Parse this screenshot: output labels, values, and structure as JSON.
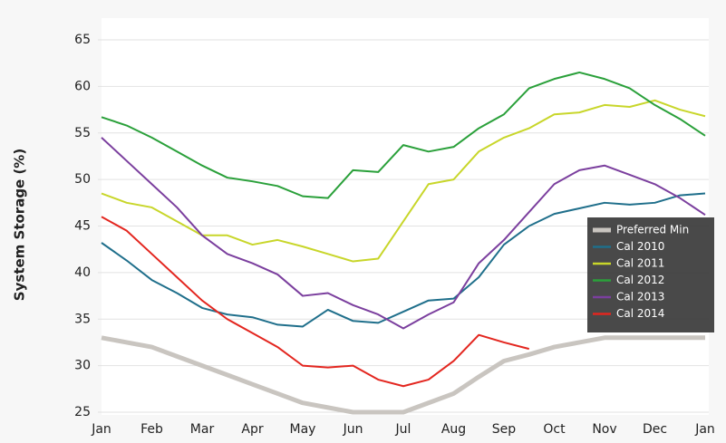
{
  "chart_data": {
    "type": "line",
    "y_label": "System Storage (%)",
    "x": [
      0,
      0.5,
      1,
      1.5,
      2,
      2.5,
      3,
      3.5,
      4,
      4.5,
      5,
      5.5,
      6,
      6.5,
      7,
      7.5,
      8,
      8.5,
      9,
      9.5,
      10,
      10.5,
      11,
      11.5,
      12
    ],
    "xlim": [
      0,
      12
    ],
    "xticks": [
      {
        "value": 0,
        "label": "Jan"
      },
      {
        "value": 1,
        "label": "Feb"
      },
      {
        "value": 2,
        "label": "Mar"
      },
      {
        "value": 3,
        "label": "Apr"
      },
      {
        "value": 4,
        "label": "May"
      },
      {
        "value": 5,
        "label": "Jun"
      },
      {
        "value": 6,
        "label": "Jul"
      },
      {
        "value": 7,
        "label": "Aug"
      },
      {
        "value": 8,
        "label": "Sep"
      },
      {
        "value": 9,
        "label": "Oct"
      },
      {
        "value": 10,
        "label": "Nov"
      },
      {
        "value": 11,
        "label": "Dec"
      },
      {
        "value": 12,
        "label": "Jan"
      }
    ],
    "ylim": [
      25,
      65
    ],
    "yticks": [
      25,
      30,
      35,
      40,
      45,
      50,
      55,
      60,
      65
    ],
    "grid": true,
    "legend": "right",
    "series": [
      {
        "name": "Preferred Min",
        "color": "#c9c5c0",
        "values": [
          33,
          32.5,
          32,
          31,
          30,
          29,
          28,
          27,
          26,
          25.5,
          25,
          25,
          25,
          26,
          27,
          28.8,
          30.5,
          31.2,
          32,
          32.5,
          33,
          33,
          33,
          33,
          33
        ]
      },
      {
        "name": "Cal 2010",
        "color": "#1f6f8b",
        "values": [
          43.2,
          41.3,
          39.2,
          37.8,
          36.2,
          35.5,
          35.2,
          34.4,
          34.2,
          36,
          34.8,
          34.6,
          35.8,
          37,
          37.2,
          39.5,
          43,
          45,
          46.3,
          46.9,
          47.5,
          47.3,
          47.5,
          48.3,
          48.5
        ]
      },
      {
        "name": "Cal 2011",
        "color": "#c8d62a",
        "values": [
          48.5,
          47.5,
          47,
          45.5,
          44,
          44,
          43,
          43.5,
          42.8,
          42,
          41.2,
          41.5,
          45.5,
          49.5,
          50,
          53,
          54.5,
          55.5,
          57,
          57.2,
          58,
          57.8,
          58.5,
          57.5,
          56.8
        ]
      },
      {
        "name": "Cal 2012",
        "color": "#2aa03a",
        "values": [
          56.7,
          55.8,
          54.5,
          53,
          51.5,
          50.2,
          49.8,
          49.3,
          48.2,
          48,
          51,
          50.8,
          53.7,
          53,
          53.5,
          55.5,
          57,
          59.8,
          60.8,
          61.5,
          60.8,
          59.8,
          58,
          56.5,
          54.7
        ]
      },
      {
        "name": "Cal 2013",
        "color": "#7b3f9e",
        "values": [
          54.5,
          52,
          49.5,
          47,
          44,
          42,
          41,
          39.8,
          37.5,
          37.8,
          36.5,
          35.5,
          34,
          35.5,
          36.8,
          41,
          43.5,
          46.5,
          49.5,
          51,
          51.5,
          50.5,
          49.5,
          48,
          46.2
        ]
      },
      {
        "name": "Cal 2014",
        "color": "#e3261f",
        "values": [
          46,
          44.5,
          42,
          39.5,
          37,
          35,
          33.5,
          32,
          30,
          29.8,
          30,
          28.5,
          27.8,
          28.5,
          30.5,
          33.3,
          32.5,
          31.8,
          null,
          null,
          null,
          null,
          null,
          null,
          null
        ]
      }
    ]
  }
}
